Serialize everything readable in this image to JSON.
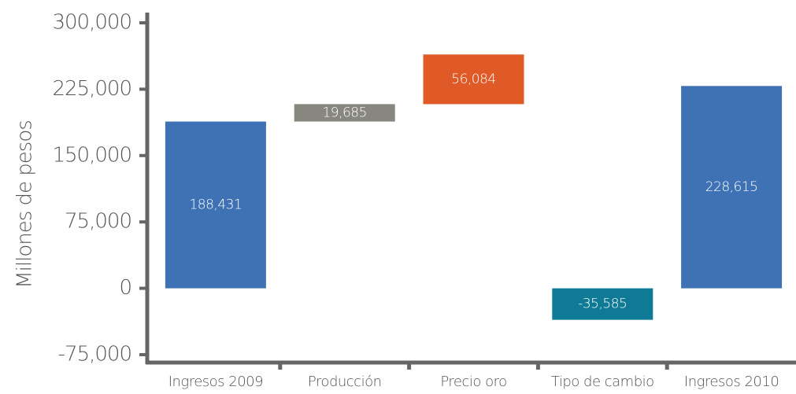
{
  "chart_data": {
    "type": "waterfall",
    "y_label": "Millones de pesos",
    "categories": [
      "Ingresos 2009",
      "Producción",
      "Precio oro",
      "Tipo de cambio",
      "Ingresos 2010"
    ],
    "values": [
      188431,
      19685,
      56084,
      -35585,
      228615
    ],
    "value_labels": [
      "188,431",
      "19,685",
      "56,084",
      "-35,585",
      "228,615"
    ],
    "is_total": [
      true,
      false,
      false,
      false,
      true
    ],
    "colors": [
      "#3f72b5",
      "#87877f",
      "#e05a27",
      "#0e7a96",
      "#3f72b5"
    ],
    "ylim": [
      -75000,
      300000
    ],
    "yticks": [
      {
        "value": -75000,
        "label": "-75,000"
      },
      0,
      {
        "value": 75000,
        "label": "75,000"
      },
      {
        "value": 150000,
        "label": "150,000"
      },
      {
        "value": 225000,
        "label": "225,000"
      },
      {
        "value": 300000,
        "label": "300,000"
      }
    ]
  }
}
